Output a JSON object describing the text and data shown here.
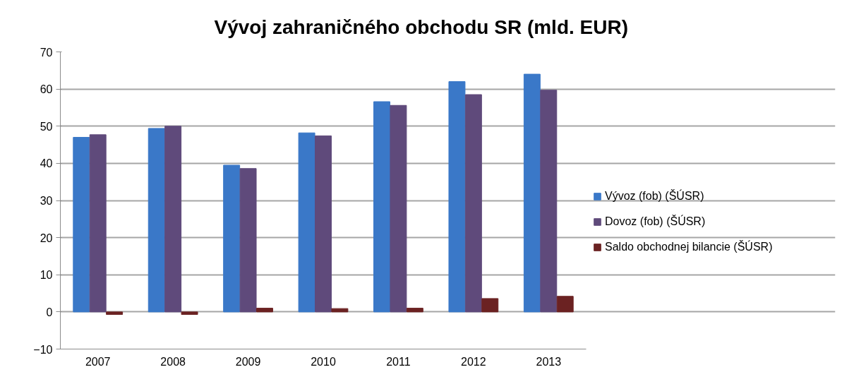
{
  "chart_data": {
    "type": "bar",
    "title": "Vývoj zahraničného obchodu SR (mld. EUR)",
    "categories": [
      "2007",
      "2008",
      "2009",
      "2010",
      "2011",
      "2012",
      "2013"
    ],
    "series": [
      {
        "name": "Vývoz (fob) (ŠÚSR)",
        "color": "#3a78c8",
        "values": [
          47.0,
          49.4,
          39.5,
          48.2,
          56.6,
          62.0,
          64.0
        ]
      },
      {
        "name": "Dovoz (fob) (ŠÚSR)",
        "color": "#5f4a7b",
        "values": [
          47.7,
          50.0,
          38.6,
          47.4,
          55.6,
          58.5,
          59.7
        ]
      },
      {
        "name": "Saldo obchodnej bilancie (ŠÚSR)",
        "color": "#6b2222",
        "values": [
          -0.7,
          -0.7,
          1.0,
          0.9,
          1.0,
          3.6,
          4.2
        ]
      }
    ],
    "ylim": [
      -10,
      70
    ],
    "yticks": [
      -10,
      0,
      10,
      20,
      30,
      40,
      50,
      60,
      70
    ],
    "grid": "y",
    "legend": "right"
  }
}
